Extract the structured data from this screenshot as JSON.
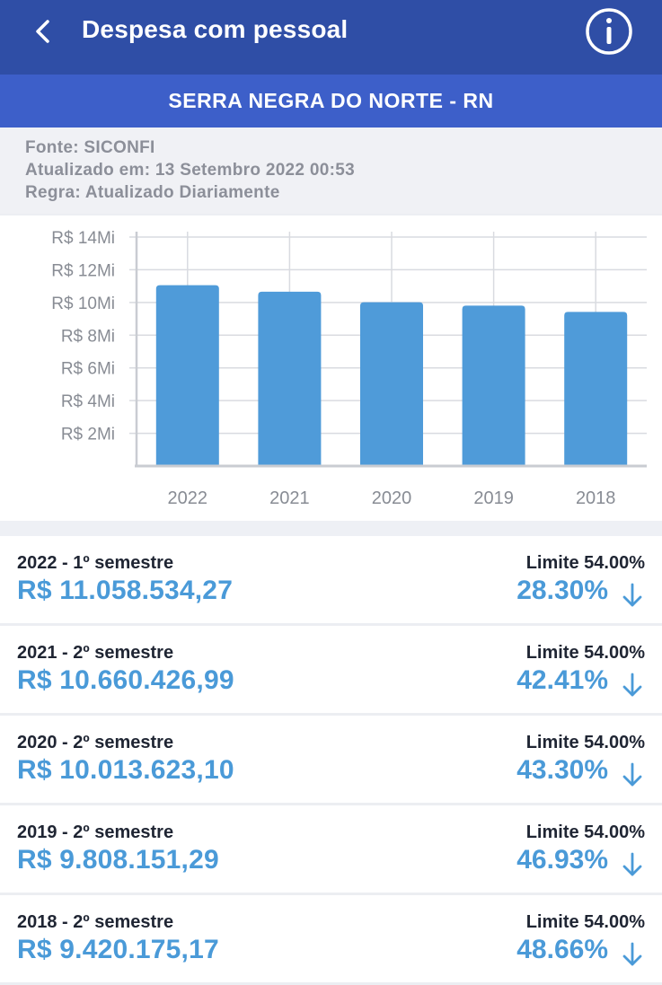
{
  "header": {
    "title": "Despesa com pessoal",
    "back_icon": "chevron-left-icon",
    "info_icon": "info-icon"
  },
  "city": "SERRA NEGRA DO NORTE - RN",
  "meta": {
    "fonte": "Fonte: SICONFI",
    "atualizado": "Atualizado em: 13 Setembro 2022 00:53",
    "regra": "Regra: Atualizado Diariamente"
  },
  "colors": {
    "header_bg": "#2f4ea6",
    "city_bg": "#3d5fc9",
    "bar": "#4f9bd9",
    "value_text": "#4a9ad8"
  },
  "chart_data": {
    "type": "bar",
    "categories": [
      "2022",
      "2021",
      "2020",
      "2019",
      "2018"
    ],
    "values": [
      11058534.27,
      10660426.99,
      10013623.1,
      9808151.29,
      9420175.17
    ],
    "ylim": [
      0,
      14000000
    ],
    "yticks": [
      2000000,
      4000000,
      6000000,
      8000000,
      10000000,
      12000000,
      14000000
    ],
    "ytick_labels": [
      "R$ 2Mi",
      "R$ 4Mi",
      "R$ 6Mi",
      "R$ 8Mi",
      "R$ 10Mi",
      "R$ 12Mi",
      "R$ 14Mi"
    ],
    "grid": true,
    "xlabel": "",
    "ylabel": ""
  },
  "rows": [
    {
      "period": "2022 - 1º semestre",
      "value": "R$ 11.058.534,27",
      "limit": "Limite 54.00%",
      "percent": "28.30%",
      "trend_icon": "arrow-down-icon"
    },
    {
      "period": "2021 - 2º semestre",
      "value": "R$ 10.660.426,99",
      "limit": "Limite 54.00%",
      "percent": "42.41%",
      "trend_icon": "arrow-down-icon"
    },
    {
      "period": "2020 - 2º semestre",
      "value": "R$ 10.013.623,10",
      "limit": "Limite 54.00%",
      "percent": "43.30%",
      "trend_icon": "arrow-down-icon"
    },
    {
      "period": "2019 - 2º semestre",
      "value": "R$ 9.808.151,29",
      "limit": "Limite 54.00%",
      "percent": "46.93%",
      "trend_icon": "arrow-down-icon"
    },
    {
      "period": "2018 - 2º semestre",
      "value": "R$ 9.420.175,17",
      "limit": "Limite 54.00%",
      "percent": "48.66%",
      "trend_icon": "arrow-down-icon"
    }
  ]
}
